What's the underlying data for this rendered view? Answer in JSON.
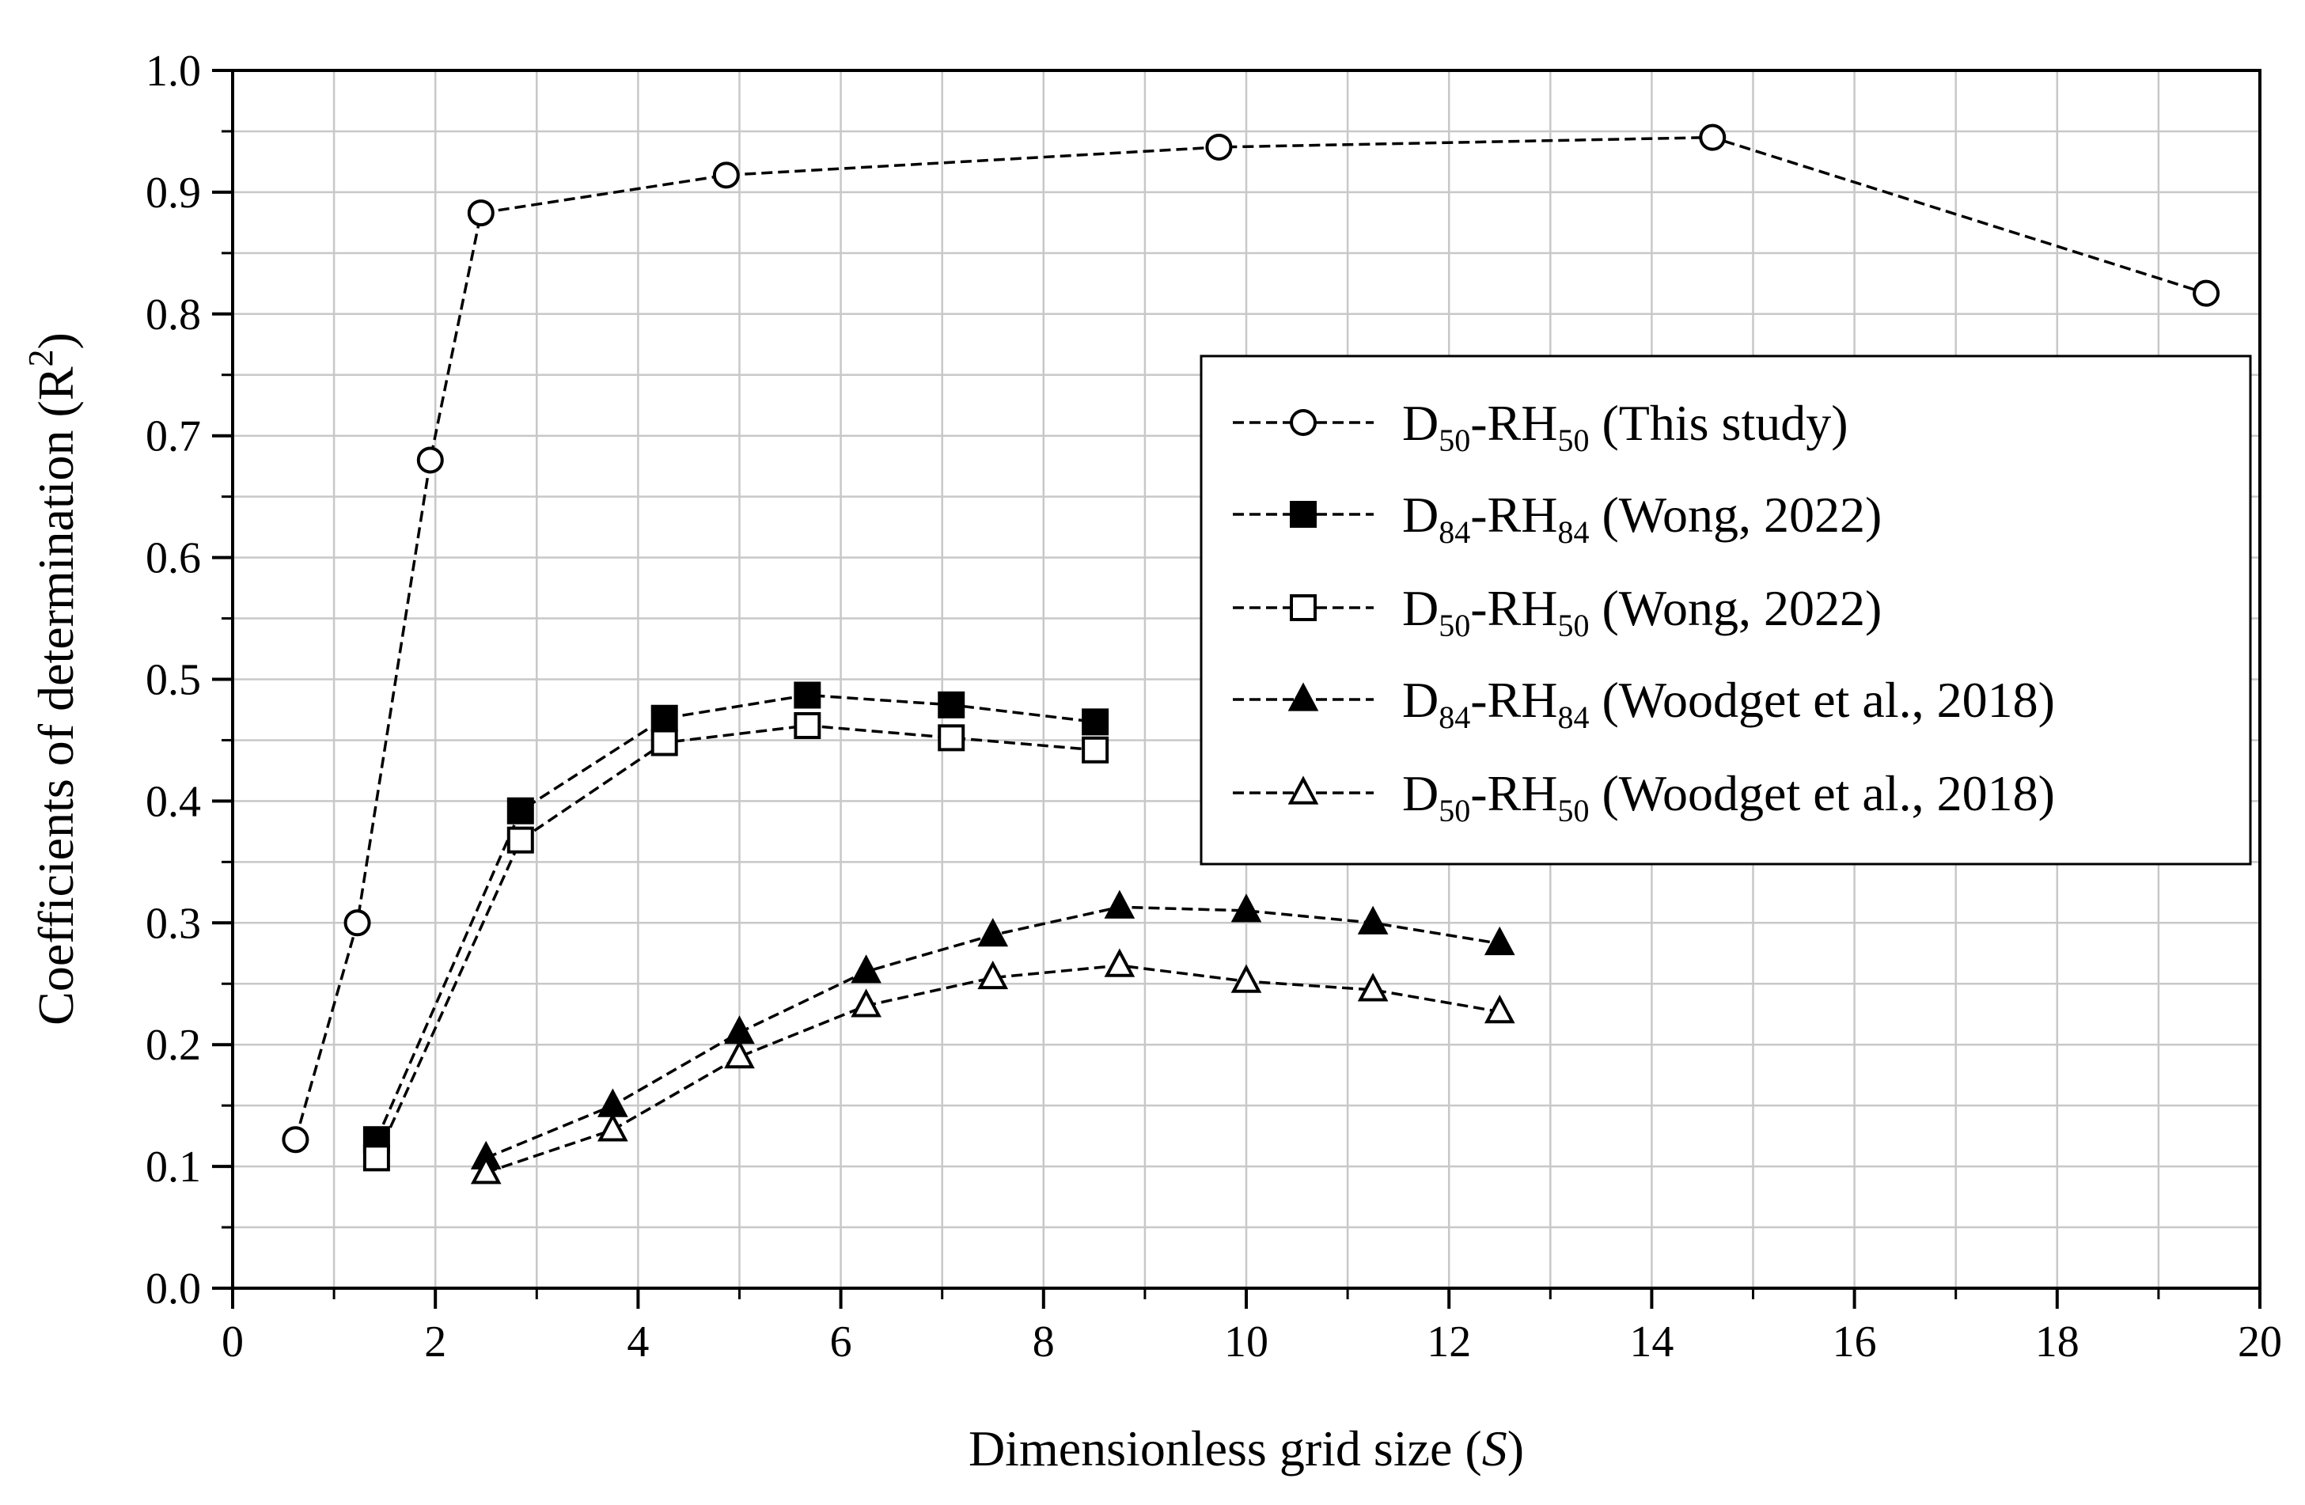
{
  "chart_data": {
    "type": "line",
    "title": "",
    "xlabel": "Dimensionless grid size (",
    "xlabel_var": "S",
    "xlabel_end": ")",
    "ylabel": "Coefficients of determination (R",
    "ylabel_sup": "2",
    "ylabel_end": ")",
    "xlim": [
      0,
      20
    ],
    "ylim": [
      0.0,
      1.0
    ],
    "xticks": [
      "0",
      "2",
      "4",
      "6",
      "8",
      "10",
      "12",
      "14",
      "16",
      "18",
      "20"
    ],
    "yticks": [
      "0.0",
      "0.1",
      "0.2",
      "0.3",
      "0.4",
      "0.5",
      "0.6",
      "0.7",
      "0.8",
      "0.9",
      "1.0"
    ],
    "grid": true,
    "legend_position": "right",
    "series": [
      {
        "name": "D50-RH50 (This study)",
        "legend": [
          [
            "D",
            ""
          ],
          [
            "50",
            "sub"
          ],
          [
            "-RH",
            ""
          ],
          [
            "50",
            "sub"
          ],
          [
            " (This study)",
            ""
          ]
        ],
        "marker": "circle-open",
        "x": [
          0.62,
          1.23,
          1.95,
          2.45,
          4.87,
          9.73,
          14.6,
          19.47
        ],
        "y": [
          0.122,
          0.3,
          0.68,
          0.883,
          0.914,
          0.937,
          0.945,
          0.817
        ]
      },
      {
        "name": "D84-RH84 (Wong, 2022)",
        "legend": [
          [
            "D",
            ""
          ],
          [
            "84",
            "sub"
          ],
          [
            "-RH",
            ""
          ],
          [
            "84",
            "sub"
          ],
          [
            " (Wong, 2022)",
            ""
          ]
        ],
        "marker": "square-filled",
        "x": [
          1.42,
          2.84,
          4.26,
          5.67,
          7.09,
          8.51
        ],
        "y": [
          0.122,
          0.392,
          0.468,
          0.487,
          0.479,
          0.465
        ]
      },
      {
        "name": "D50-RH50 (Wong, 2022)",
        "legend": [
          [
            "D",
            ""
          ],
          [
            "50",
            "sub"
          ],
          [
            "-RH",
            ""
          ],
          [
            "50",
            "sub"
          ],
          [
            " (Wong, 2022)",
            ""
          ]
        ],
        "marker": "square-open",
        "x": [
          1.42,
          2.84,
          4.26,
          5.67,
          7.09,
          8.51
        ],
        "y": [
          0.107,
          0.368,
          0.448,
          0.462,
          0.452,
          0.442
        ]
      },
      {
        "name": "D84-RH84 (Woodget et al., 2018)",
        "legend": [
          [
            "D",
            ""
          ],
          [
            "84",
            "sub"
          ],
          [
            "-RH",
            ""
          ],
          [
            "84",
            "sub"
          ],
          [
            " (Woodget et al., 2018)",
            ""
          ]
        ],
        "marker": "triangle-filled",
        "x": [
          2.5,
          3.75,
          5.0,
          6.25,
          7.5,
          8.75,
          10.0,
          11.25,
          12.5
        ],
        "y": [
          0.107,
          0.15,
          0.21,
          0.26,
          0.29,
          0.313,
          0.31,
          0.3,
          0.283
        ]
      },
      {
        "name": "D50-RH50 (Woodget et al., 2018)",
        "legend": [
          [
            "D",
            ""
          ],
          [
            "50",
            "sub"
          ],
          [
            "-RH",
            ""
          ],
          [
            "50",
            "sub"
          ],
          [
            " (Woodget et al., 2018)",
            ""
          ]
        ],
        "marker": "triangle-open",
        "x": [
          2.5,
          3.75,
          5.0,
          6.25,
          7.5,
          8.75,
          10.0,
          11.25,
          12.5
        ],
        "y": [
          0.095,
          0.13,
          0.19,
          0.232,
          0.255,
          0.265,
          0.252,
          0.245,
          0.227
        ]
      }
    ]
  }
}
